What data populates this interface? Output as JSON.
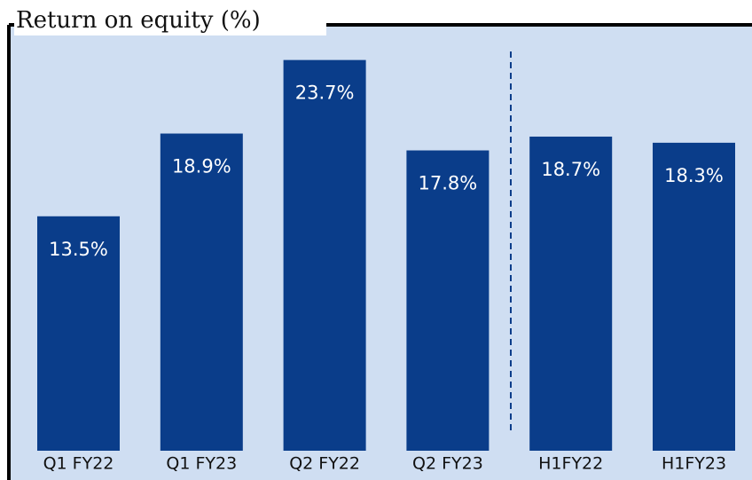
{
  "chart_data": {
    "type": "bar",
    "title": "Return on equity (%)",
    "categories": [
      "Q1 FY22",
      "Q1 FY23",
      "Q2 FY22",
      "Q2 FY23",
      "H1FY22",
      "H1FY23"
    ],
    "values": [
      13.5,
      18.9,
      23.7,
      17.8,
      18.7,
      18.3
    ],
    "value_labels": [
      "13.5%",
      "18.9%",
      "23.7%",
      "17.8%",
      "18.7%",
      "18.3%"
    ],
    "color": "#0a3d8a",
    "ylim": [
      -1.8,
      25.3
    ]
  }
}
